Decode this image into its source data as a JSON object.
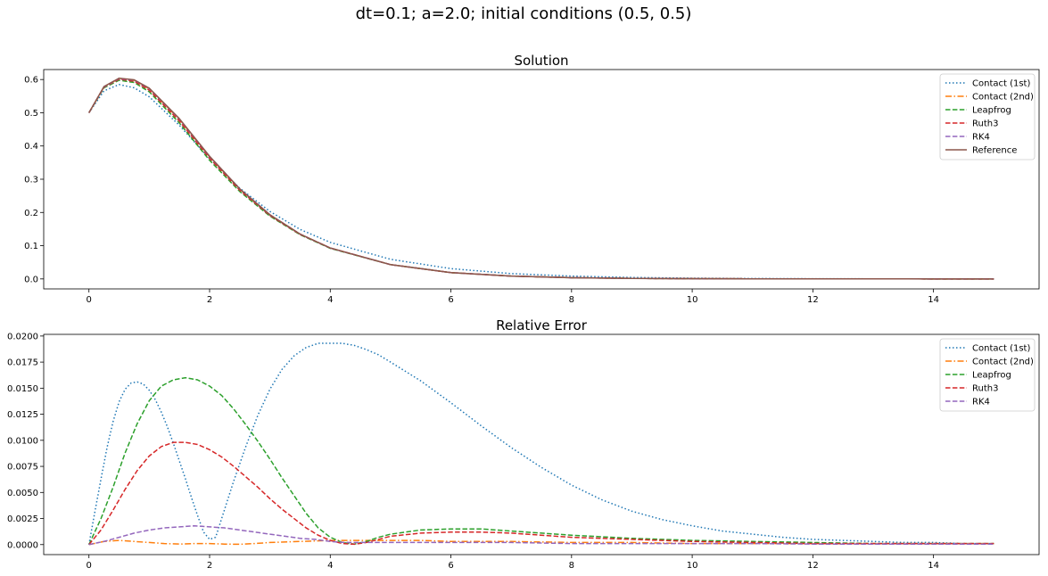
{
  "figure": {
    "suptitle": "dt=0.1; a=2.0; initial conditions (0.5, 0.5)"
  },
  "chart_data": [
    {
      "type": "line",
      "title": "Solution",
      "xlabel": "",
      "ylabel": "",
      "xlim": [
        -0.75,
        15.75
      ],
      "ylim": [
        -0.03,
        0.63
      ],
      "xticks": [
        0,
        2,
        4,
        6,
        8,
        10,
        12,
        14
      ],
      "xtick_labels": [
        "0",
        "2",
        "4",
        "6",
        "8",
        "10",
        "12",
        "14"
      ],
      "yticks": [
        0.0,
        0.1,
        0.2,
        0.3,
        0.4,
        0.5,
        0.6
      ],
      "ytick_labels": [
        "0.0",
        "0.1",
        "0.2",
        "0.3",
        "0.4",
        "0.5",
        "0.6"
      ],
      "legend_position": "top-right",
      "grid": false,
      "x": [
        0,
        0.25,
        0.5,
        0.75,
        1,
        1.5,
        2,
        2.5,
        3,
        3.5,
        4,
        5,
        6,
        7,
        8,
        9,
        10,
        11,
        12,
        13,
        14,
        15
      ],
      "series": [
        {
          "name": "Contact (1st)",
          "color": "#1f77b4",
          "dash": "dotted",
          "values": [
            0.5,
            0.566,
            0.585,
            0.575,
            0.548,
            0.462,
            0.362,
            0.273,
            0.203,
            0.149,
            0.11,
            0.059,
            0.031,
            0.016,
            0.0085,
            0.0044,
            0.0023,
            0.0012,
            0.0006,
            0.0003,
            0.0002,
            0.0001
          ]
        },
        {
          "name": "Contact (2nd)",
          "color": "#ff7f0e",
          "dash": "dashdot",
          "values": [
            0.5,
            0.578,
            0.603,
            0.598,
            0.572,
            0.48,
            0.367,
            0.27,
            0.193,
            0.135,
            0.093,
            0.043,
            0.019,
            0.0085,
            0.0037,
            0.0016,
            0.0007,
            0.0003,
            0.0001,
            0.0001,
            0.0,
            0.0
          ]
        },
        {
          "name": "Leapfrog",
          "color": "#2ca02c",
          "dash": "dashed",
          "values": [
            0.5,
            0.575,
            0.598,
            0.591,
            0.563,
            0.469,
            0.357,
            0.263,
            0.189,
            0.133,
            0.092,
            0.043,
            0.019,
            0.0085,
            0.0037,
            0.0016,
            0.0007,
            0.0003,
            0.0001,
            0.0001,
            0.0,
            0.0
          ]
        },
        {
          "name": "Ruth3",
          "color": "#d62728",
          "dash": "dashed",
          "values": [
            0.5,
            0.577,
            0.601,
            0.595,
            0.568,
            0.475,
            0.363,
            0.267,
            0.191,
            0.134,
            0.093,
            0.043,
            0.019,
            0.0085,
            0.0037,
            0.0016,
            0.0007,
            0.0003,
            0.0001,
            0.0001,
            0.0,
            0.0
          ]
        },
        {
          "name": "RK4",
          "color": "#9467bd",
          "dash": "dashed",
          "values": [
            0.5,
            0.578,
            0.603,
            0.598,
            0.573,
            0.481,
            0.368,
            0.271,
            0.193,
            0.135,
            0.093,
            0.043,
            0.019,
            0.0085,
            0.0037,
            0.0016,
            0.0007,
            0.0003,
            0.0001,
            0.0001,
            0.0,
            0.0
          ]
        },
        {
          "name": "Reference",
          "color": "#8c564b",
          "dash": "solid",
          "values": [
            0.5,
            0.579,
            0.604,
            0.599,
            0.574,
            0.482,
            0.369,
            0.271,
            0.193,
            0.135,
            0.093,
            0.043,
            0.019,
            0.0085,
            0.0037,
            0.0016,
            0.0007,
            0.0003,
            0.0001,
            0.0001,
            0.0,
            0.0
          ]
        }
      ]
    },
    {
      "type": "line",
      "title": "Relative Error",
      "xlabel": "",
      "ylabel": "",
      "xlim": [
        -0.75,
        15.75
      ],
      "ylim": [
        -0.00096,
        0.02016
      ],
      "xticks": [
        0,
        2,
        4,
        6,
        8,
        10,
        12,
        14
      ],
      "xtick_labels": [
        "0",
        "2",
        "4",
        "6",
        "8",
        "10",
        "12",
        "14"
      ],
      "yticks": [
        0.0,
        0.0025,
        0.005,
        0.0075,
        0.01,
        0.0125,
        0.015,
        0.0175,
        0.02
      ],
      "ytick_labels": [
        "0.0000",
        "0.0025",
        "0.0050",
        "0.0075",
        "0.0100",
        "0.0125",
        "0.0150",
        "0.0175",
        "0.0200"
      ],
      "legend_position": "top-right",
      "grid": false,
      "series": [
        {
          "name": "Contact (1st)",
          "color": "#1f77b4",
          "dash": "dotted",
          "x": [
            0,
            0.1,
            0.2,
            0.3,
            0.4,
            0.5,
            0.6,
            0.7,
            0.8,
            0.9,
            1.0,
            1.1,
            1.2,
            1.3,
            1.4,
            1.5,
            1.6,
            1.7,
            1.8,
            1.9,
            2.0,
            2.1,
            2.2,
            2.4,
            2.6,
            2.8,
            3.0,
            3.2,
            3.4,
            3.6,
            3.8,
            4.0,
            4.2,
            4.4,
            4.6,
            4.8,
            5.0,
            5.5,
            6.0,
            6.5,
            7.0,
            7.5,
            8.0,
            8.5,
            9.0,
            9.5,
            10.0,
            10.5,
            11.0,
            11.5,
            12.0,
            12.5,
            13.0,
            13.5,
            14.0,
            14.5,
            15.0
          ],
          "y": [
            0.0,
            0.0032,
            0.0063,
            0.0093,
            0.0118,
            0.0137,
            0.0149,
            0.0155,
            0.0156,
            0.0154,
            0.0148,
            0.0139,
            0.0127,
            0.0113,
            0.0097,
            0.008,
            0.0063,
            0.0045,
            0.0028,
            0.0012,
            0.0005,
            0.0007,
            0.0025,
            0.0061,
            0.0094,
            0.0124,
            0.0149,
            0.0168,
            0.0181,
            0.0189,
            0.0193,
            0.0193,
            0.0193,
            0.0191,
            0.0187,
            0.0182,
            0.0175,
            0.0157,
            0.0136,
            0.0114,
            0.0093,
            0.0074,
            0.0057,
            0.0043,
            0.0032,
            0.0024,
            0.0018,
            0.0013,
            0.001,
            0.0007,
            0.0005,
            0.0004,
            0.0003,
            0.0002,
            0.0002,
            0.0001,
            0.0001
          ]
        },
        {
          "name": "Contact (2nd)",
          "color": "#ff7f0e",
          "dash": "dashdot",
          "x": [
            0,
            0.25,
            0.5,
            0.75,
            1.0,
            1.25,
            1.5,
            1.75,
            2.0,
            2.25,
            2.5,
            2.75,
            3.0,
            3.5,
            4.0,
            4.5,
            5.0,
            5.5,
            6.0,
            6.5,
            7.0,
            8.0,
            9.0,
            10.0,
            11.0,
            12.0,
            13.0,
            14.0,
            15.0
          ],
          "y": [
            0.0,
            0.0003,
            0.0004,
            0.0003,
            0.0002,
            0.0001,
            5e-05,
            0.0001,
            0.0001,
            5e-05,
            3e-05,
            0.0001,
            0.0002,
            0.0003,
            0.0004,
            0.0004,
            0.0004,
            0.0004,
            0.0003,
            0.0003,
            0.0003,
            0.0002,
            0.0002,
            0.0001,
            0.0001,
            0.0001,
            0.0001,
            0.0001,
            0.0001
          ]
        },
        {
          "name": "Leapfrog",
          "color": "#2ca02c",
          "dash": "dashed",
          "x": [
            0,
            0.2,
            0.4,
            0.6,
            0.8,
            1.0,
            1.2,
            1.4,
            1.6,
            1.8,
            2.0,
            2.2,
            2.4,
            2.6,
            2.8,
            3.0,
            3.2,
            3.4,
            3.6,
            3.8,
            4.0,
            4.2,
            4.4,
            4.6,
            4.8,
            5.0,
            5.5,
            6.0,
            6.5,
            7.0,
            7.5,
            8.0,
            9.0,
            10.0,
            11.0,
            12.0,
            13.0,
            14.0,
            15.0
          ],
          "y": [
            0.0,
            0.0025,
            0.0055,
            0.0088,
            0.0116,
            0.0138,
            0.0152,
            0.0158,
            0.016,
            0.0158,
            0.0152,
            0.0143,
            0.013,
            0.0115,
            0.0099,
            0.0082,
            0.0064,
            0.0047,
            0.003,
            0.0016,
            0.0007,
            0.0002,
            5e-05,
            0.0003,
            0.0007,
            0.001,
            0.0014,
            0.0015,
            0.0015,
            0.0013,
            0.0011,
            0.0009,
            0.0006,
            0.0004,
            0.0003,
            0.0002,
            0.0001,
            0.0001,
            0.0001
          ]
        },
        {
          "name": "Ruth3",
          "color": "#d62728",
          "dash": "dashed",
          "x": [
            0,
            0.2,
            0.4,
            0.6,
            0.8,
            1.0,
            1.2,
            1.4,
            1.6,
            1.8,
            2.0,
            2.2,
            2.4,
            2.6,
            2.8,
            3.0,
            3.2,
            3.4,
            3.6,
            3.8,
            4.0,
            4.2,
            4.4,
            4.6,
            4.8,
            5.0,
            5.5,
            6.0,
            6.5,
            7.0,
            8.0,
            9.0,
            10.0,
            11.0,
            12.0,
            13.0,
            14.0,
            15.0
          ],
          "y": [
            0.0,
            0.0014,
            0.0033,
            0.0053,
            0.0071,
            0.0085,
            0.0094,
            0.0098,
            0.0098,
            0.0096,
            0.0091,
            0.0084,
            0.0075,
            0.0065,
            0.0055,
            0.0044,
            0.0034,
            0.0025,
            0.0016,
            0.0009,
            0.0004,
            0.0001,
            3e-05,
            0.0002,
            0.0005,
            0.0008,
            0.0011,
            0.0012,
            0.0012,
            0.0011,
            0.0007,
            0.0005,
            0.0003,
            0.0002,
            0.0001,
            0.0001,
            0.0001,
            0.0001
          ]
        },
        {
          "name": "RK4",
          "color": "#9467bd",
          "dash": "dashed",
          "x": [
            0,
            0.25,
            0.5,
            0.75,
            1.0,
            1.25,
            1.5,
            1.75,
            2.0,
            2.25,
            2.5,
            2.75,
            3.0,
            3.25,
            3.5,
            3.75,
            4.0,
            4.25,
            4.5,
            5.0,
            5.5,
            6.0,
            7.0,
            8.0,
            9.0,
            10.0,
            11.0,
            12.0,
            13.0,
            14.0,
            15.0
          ],
          "y": [
            0.0,
            0.0003,
            0.0007,
            0.0011,
            0.0014,
            0.0016,
            0.0017,
            0.0018,
            0.0017,
            0.0016,
            0.0014,
            0.0012,
            0.001,
            0.0008,
            0.0006,
            0.0005,
            0.0003,
            0.0002,
            0.0002,
            0.0002,
            0.0002,
            0.0002,
            0.0002,
            0.0001,
            0.0001,
            0.0001,
            0.0001,
            5e-05,
            5e-05,
            5e-05,
            5e-05
          ]
        }
      ]
    }
  ]
}
